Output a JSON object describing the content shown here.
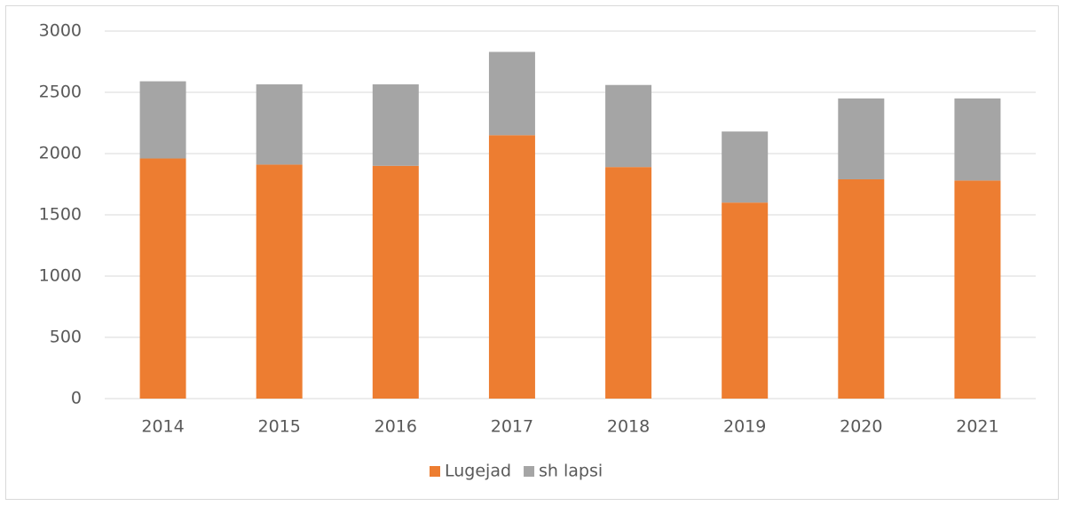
{
  "chart_data": {
    "type": "stacked_bar",
    "categories": [
      "2014",
      "2015",
      "2016",
      "2017",
      "2018",
      "2019",
      "2020",
      "2021"
    ],
    "series": [
      {
        "name": "Lugejad",
        "color": "#ed7d31",
        "values": [
          1960,
          1910,
          1900,
          2150,
          1890,
          1600,
          1790,
          1780
        ]
      },
      {
        "name": "sh lapsi",
        "color": "#a5a5a5",
        "values": [
          630,
          655,
          665,
          680,
          670,
          580,
          660,
          670
        ]
      }
    ],
    "ylim": [
      0,
      3000
    ],
    "yticks": [
      0,
      500,
      1000,
      1500,
      2000,
      2500,
      3000
    ],
    "grid": true,
    "legend": "bottom"
  }
}
